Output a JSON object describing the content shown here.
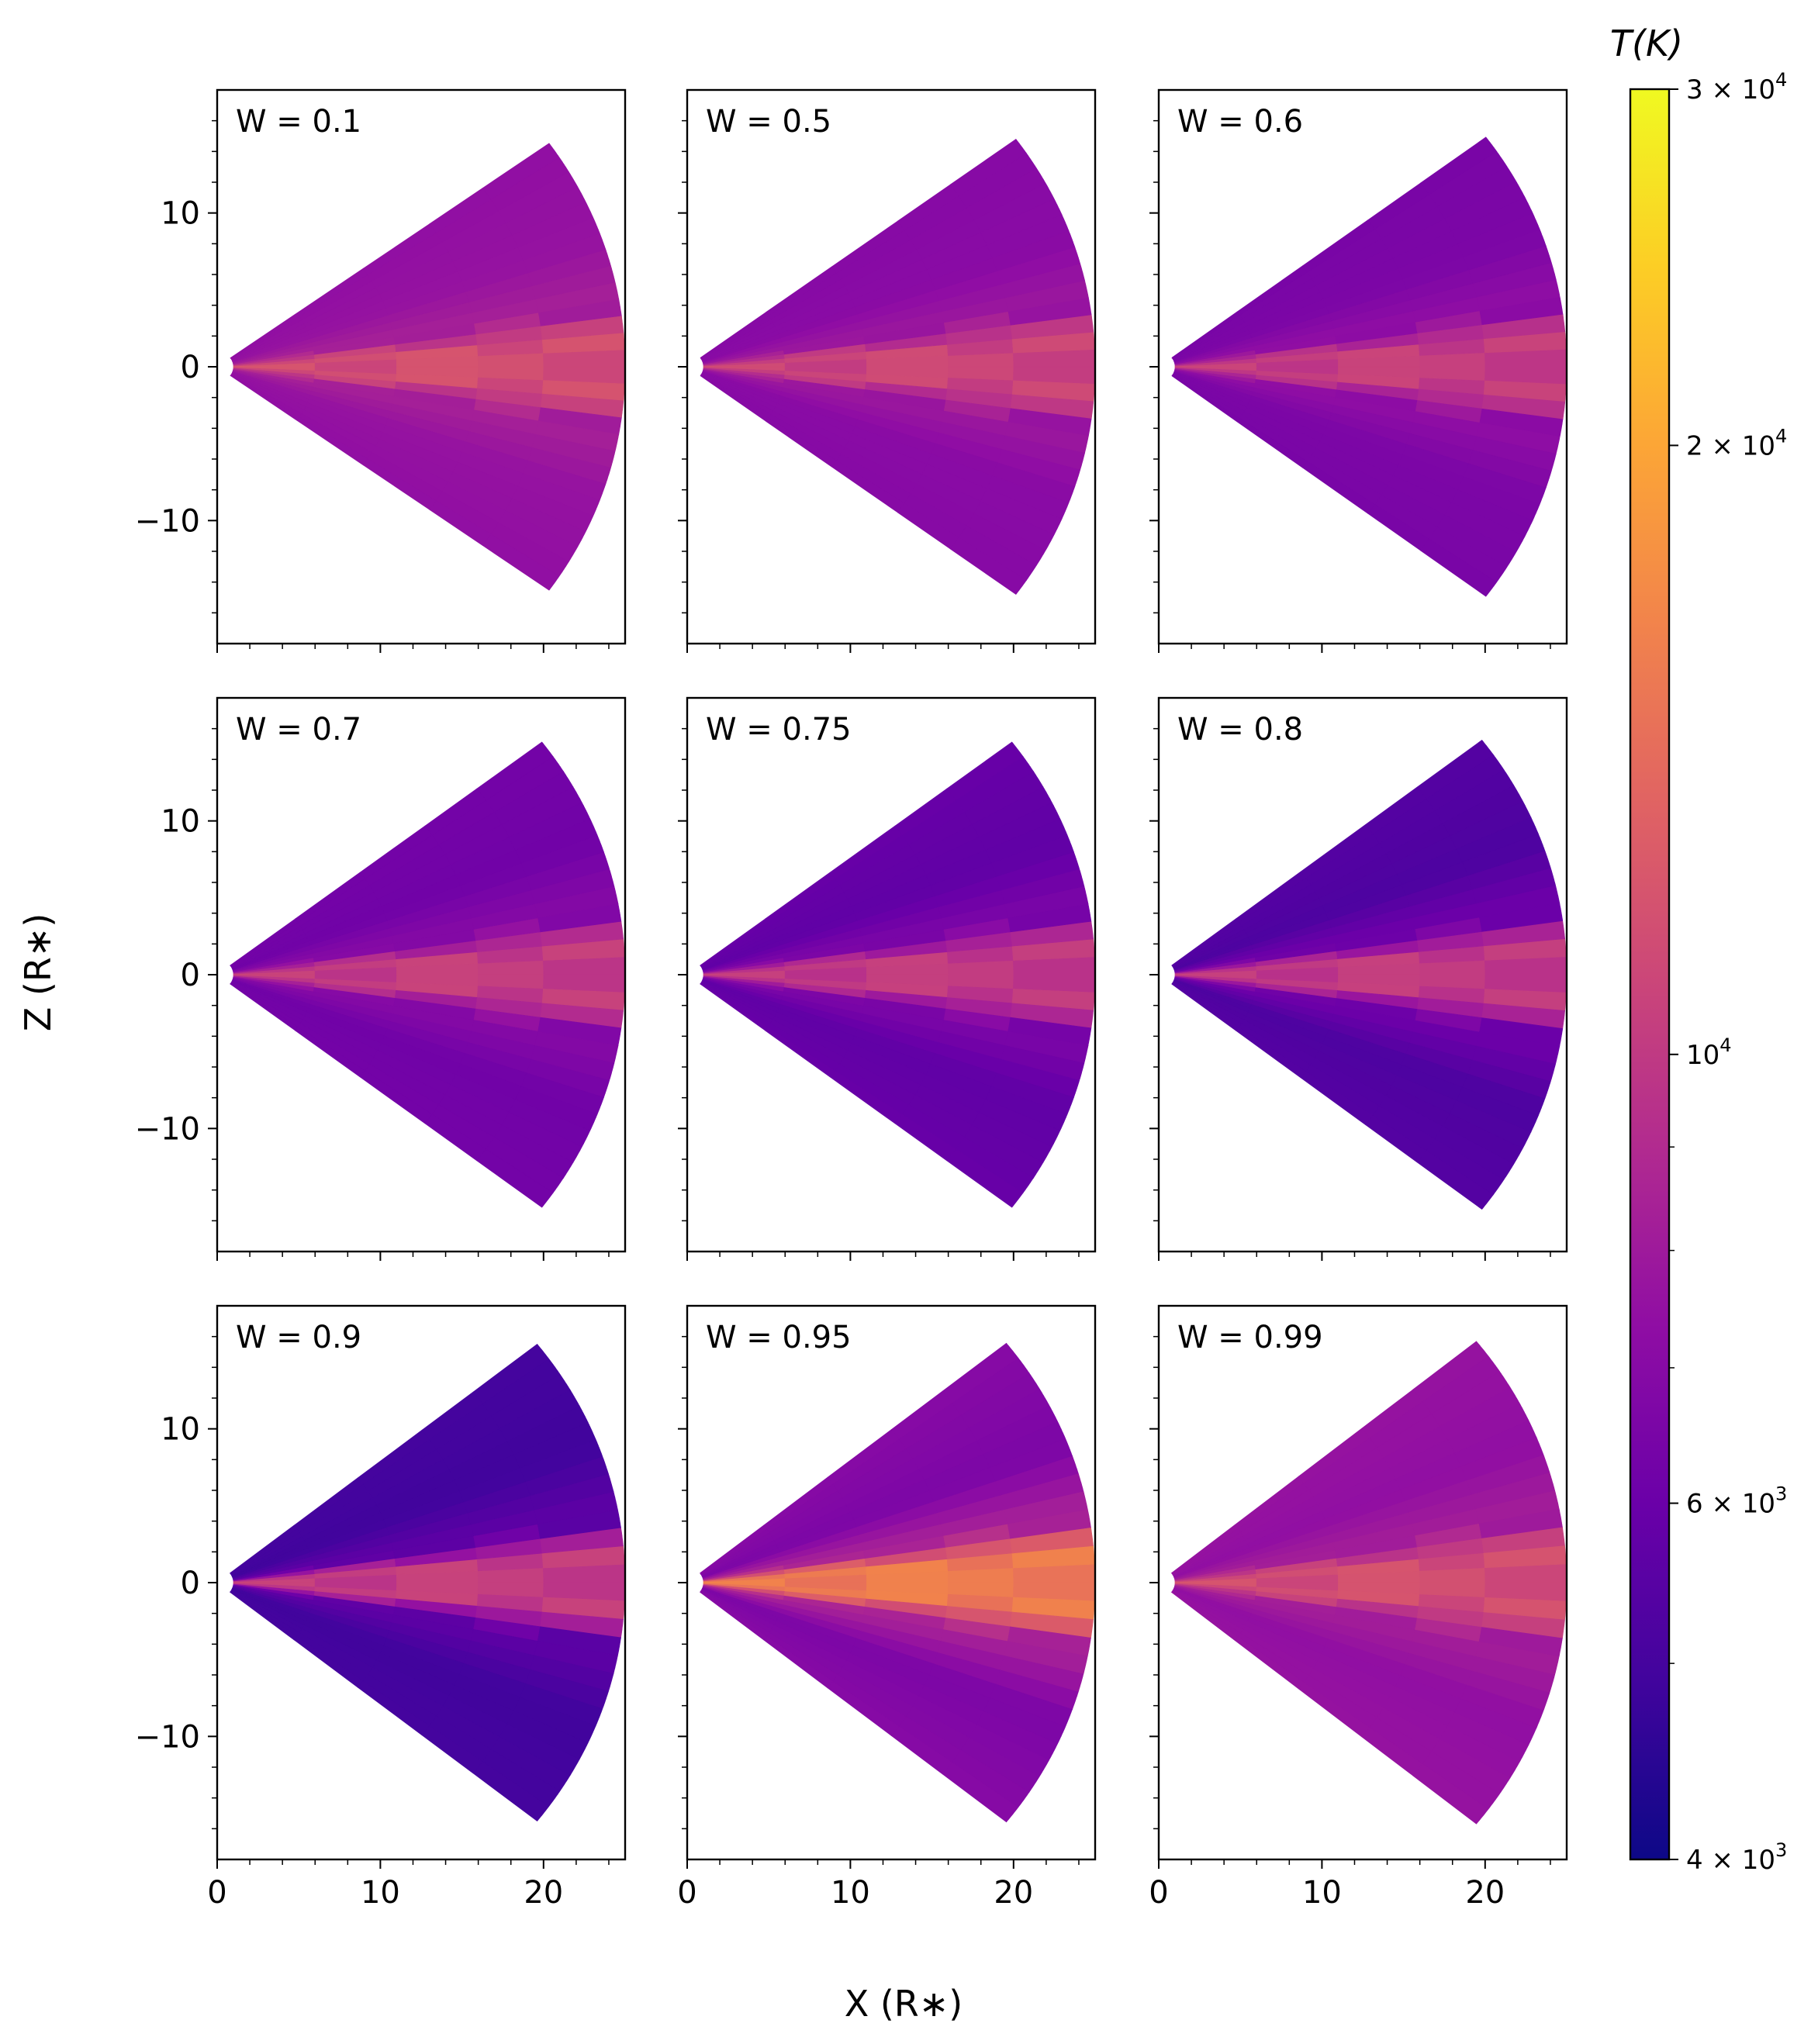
{
  "figure": {
    "xlabel": "X (R∗)",
    "ylabel": "Z (R∗)",
    "colorbar": {
      "title": "T(K)",
      "scale": "log",
      "min": 4000,
      "max": 30000,
      "colormap": "plasma",
      "major_ticks": [
        {
          "value": 30000,
          "mant": "3 × 10",
          "exp": "4"
        },
        {
          "value": 20000,
          "mant": "2 × 10",
          "exp": "4"
        },
        {
          "value": 10000,
          "mant": "10",
          "exp": "4"
        },
        {
          "value": 6000,
          "mant": "6 × 10",
          "exp": "3"
        },
        {
          "value": 4000,
          "mant": "4 × 10",
          "exp": "3"
        }
      ],
      "minor_ticks": [
        5000,
        7000,
        8000,
        9000
      ]
    }
  },
  "chart_data": {
    "type": "heatmap",
    "description_axes": {
      "x": {
        "label": "X (R∗)",
        "lim": [
          0,
          25
        ],
        "ticks": [
          0,
          10,
          20
        ],
        "tick_labels": [
          "0",
          "10",
          "20"
        ]
      },
      "y": {
        "label": "Z (R∗)",
        "lim": [
          -18,
          18
        ],
        "ticks": [
          10,
          0,
          -10
        ],
        "tick_labels": [
          "10",
          "0",
          "−10"
        ]
      }
    },
    "color_scale": {
      "type": "log",
      "min": 4000,
      "max": 30000,
      "label": "T(K)"
    },
    "panels": [
      {
        "label": "W = 0.1",
        "r_inner": 1,
        "r_outer": 25,
        "z_tip": 14.0,
        "T_mid": 11500,
        "T_inner_wedge": 8500,
        "T_mid_wedge": 7600,
        "T_outer_wedge": 7400
      },
      {
        "label": "W = 0.5",
        "r_inner": 1,
        "r_outer": 25,
        "z_tip": 14.4,
        "T_mid": 10800,
        "T_inner_wedge": 8000,
        "T_mid_wedge": 7100,
        "T_outer_wedge": 7000
      },
      {
        "label": "W = 0.6",
        "r_inner": 1,
        "r_outer": 25,
        "z_tip": 14.6,
        "T_mid": 10300,
        "T_inner_wedge": 7500,
        "T_mid_wedge": 6600,
        "T_outer_wedge": 6500
      },
      {
        "label": "W = 0.7",
        "r_inner": 1,
        "r_outer": 25,
        "z_tip": 14.9,
        "T_mid": 10200,
        "T_inner_wedge": 7100,
        "T_mid_wedge": 6200,
        "T_outer_wedge": 6300
      },
      {
        "label": "W = 0.75",
        "r_inner": 1,
        "r_outer": 25,
        "z_tip": 14.9,
        "T_mid": 10000,
        "T_inner_wedge": 6700,
        "T_mid_wedge": 5700,
        "T_outer_wedge": 5900
      },
      {
        "label": "W = 0.8",
        "r_inner": 1,
        "r_outer": 25,
        "z_tip": 15.1,
        "T_mid": 10000,
        "T_inner_wedge": 6300,
        "T_mid_wedge": 5200,
        "T_outer_wedge": 5400
      },
      {
        "label": "W = 0.9",
        "r_inner": 1,
        "r_outer": 25,
        "z_tip": 15.5,
        "T_mid": 10200,
        "T_inner_wedge": 5800,
        "T_mid_wedge": 4900,
        "T_outer_wedge": 5000
      },
      {
        "label": "W = 0.95",
        "r_inner": 1,
        "r_outer": 25,
        "z_tip": 15.6,
        "T_mid": 15500,
        "T_inner_wedge": 8800,
        "T_mid_wedge": 6600,
        "T_outer_wedge": 7000
      },
      {
        "label": "W = 0.99",
        "r_inner": 1,
        "r_outer": 25,
        "z_tip": 15.8,
        "T_mid": 11500,
        "T_inner_wedge": 8400,
        "T_mid_wedge": 7400,
        "T_outer_wedge": 7600
      }
    ]
  }
}
